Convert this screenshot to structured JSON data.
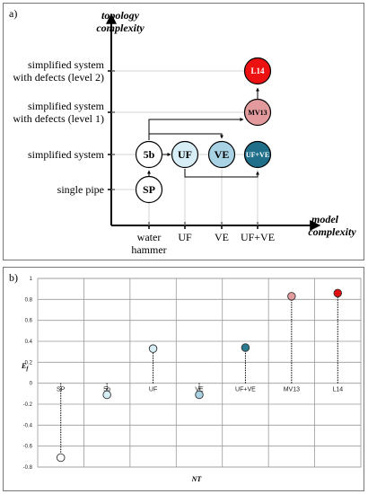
{
  "panel_a": {
    "label": "a)",
    "y_axis_title_line1": "topology",
    "y_axis_title_line2": "complexity",
    "x_axis_title_line1": "model",
    "x_axis_title_line2": "complexity",
    "levels": [
      {
        "line1": "single pipe",
        "line2": ""
      },
      {
        "line1": "simplified system",
        "line2": ""
      },
      {
        "line1": "simplified system",
        "line2": "with defects (level 1)"
      },
      {
        "line1": "simplified system",
        "line2": "with defects (level 2)"
      }
    ],
    "models": [
      {
        "line1": "water",
        "line2": "hammer"
      },
      {
        "line1": "UF",
        "line2": ""
      },
      {
        "line1": "VE",
        "line2": ""
      },
      {
        "line1": "UF+VE",
        "line2": ""
      }
    ],
    "nodes": [
      {
        "label": "SP",
        "model": 0,
        "level": 0,
        "fill": "#ffffff"
      },
      {
        "label": "5b",
        "model": 0,
        "level": 1,
        "fill": "#ffffff"
      },
      {
        "label": "UF",
        "model": 1,
        "level": 1,
        "fill": "#d8eef6"
      },
      {
        "label": "VE",
        "model": 2,
        "level": 1,
        "fill": "#a9d2e4"
      },
      {
        "label": "UF+VE",
        "model": 3,
        "level": 1,
        "fill": "#1f6f8b"
      },
      {
        "label": "MV13",
        "model": 3,
        "level": 2,
        "fill": "#e39a9d"
      },
      {
        "label": "L14",
        "model": 3,
        "level": 3,
        "fill": "#ee1111"
      }
    ]
  },
  "panel_b": {
    "label": "b)",
    "xlabel": "NT",
    "ylabel": "E",
    "ylabel_sub": "f"
  },
  "chart_data": {
    "type": "scatter",
    "xlabel": "NT",
    "ylabel": "Ef",
    "categories": [
      "SP",
      "5b",
      "UF",
      "VE",
      "UF+VE",
      "MV13",
      "L14"
    ],
    "values": [
      -0.71,
      -0.11,
      0.33,
      -0.11,
      0.34,
      0.83,
      0.86
    ],
    "colors": [
      "#ffffff",
      "#d8eef6",
      "#d8eef6",
      "#a9d2e4",
      "#2a7b8f",
      "#e39a9d",
      "#e01010"
    ],
    "ylim": [
      -0.8,
      1.0
    ],
    "yticks": [
      "1",
      "0.8",
      "0.6",
      "0.4",
      "0.2",
      "0",
      "-0.2",
      "-0.4",
      "-0.6",
      "-0.8"
    ],
    "grid": true
  }
}
